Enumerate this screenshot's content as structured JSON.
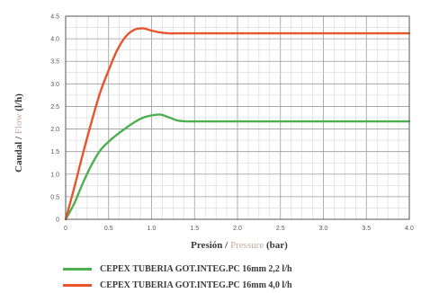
{
  "chart_data": {
    "type": "line",
    "xlabel": {
      "main": "Presión",
      "sep": " / ",
      "alt": "Pressure",
      "unit": " (bar)"
    },
    "ylabel": {
      "main": "Caudal",
      "sep": " / ",
      "alt": "Flow",
      "unit": " (l/h)"
    },
    "xlim": [
      0,
      4.0
    ],
    "ylim": [
      0,
      4.5
    ],
    "xticks": [
      0,
      0.5,
      1.0,
      1.5,
      2.0,
      2.5,
      3.0,
      3.5,
      4.0
    ],
    "xtick_labels": [
      "0",
      "0.5",
      "1.0",
      "1.5",
      "2.0",
      "2.5",
      "3.0",
      "3.5",
      "4.0"
    ],
    "yticks": [
      0,
      0.5,
      1.0,
      1.5,
      2.0,
      2.5,
      3.0,
      3.5,
      4.0,
      4.5
    ],
    "ytick_labels": [
      "0",
      "0.5",
      "1.0",
      "1.5",
      "2.0",
      "2.5",
      "3.0",
      "3.5",
      "4.0",
      "4.5"
    ],
    "grid": true,
    "legend_position": "bottom",
    "series": [
      {
        "name": "CEPEX TUBERIA GOT.INTEG.PC 16mm 2,2 l/h",
        "color": "#4caf50",
        "x": [
          0,
          0.1,
          0.2,
          0.3,
          0.4,
          0.5,
          0.6,
          0.7,
          0.8,
          0.9,
          1.0,
          1.1,
          1.2,
          1.3,
          1.4,
          1.5,
          2.0,
          2.5,
          3.0,
          3.5,
          4.0
        ],
        "y": [
          0,
          0.35,
          0.8,
          1.2,
          1.52,
          1.72,
          1.88,
          2.02,
          2.15,
          2.25,
          2.3,
          2.32,
          2.26,
          2.19,
          2.17,
          2.17,
          2.17,
          2.17,
          2.17,
          2.17,
          2.17
        ]
      },
      {
        "name": "CEPEX TUBERIA GOT.INTEG.PC 16mm 4,0 l/h",
        "color": "#e8542c",
        "x": [
          0,
          0.1,
          0.2,
          0.3,
          0.4,
          0.5,
          0.6,
          0.7,
          0.8,
          0.9,
          1.0,
          1.1,
          1.2,
          1.3,
          1.4,
          1.5,
          2.0,
          2.5,
          3.0,
          3.5,
          4.0
        ],
        "y": [
          0,
          0.7,
          1.45,
          2.15,
          2.8,
          3.3,
          3.75,
          4.05,
          4.2,
          4.23,
          4.18,
          4.14,
          4.12,
          4.12,
          4.12,
          4.12,
          4.12,
          4.12,
          4.12,
          4.12,
          4.12
        ]
      }
    ]
  }
}
